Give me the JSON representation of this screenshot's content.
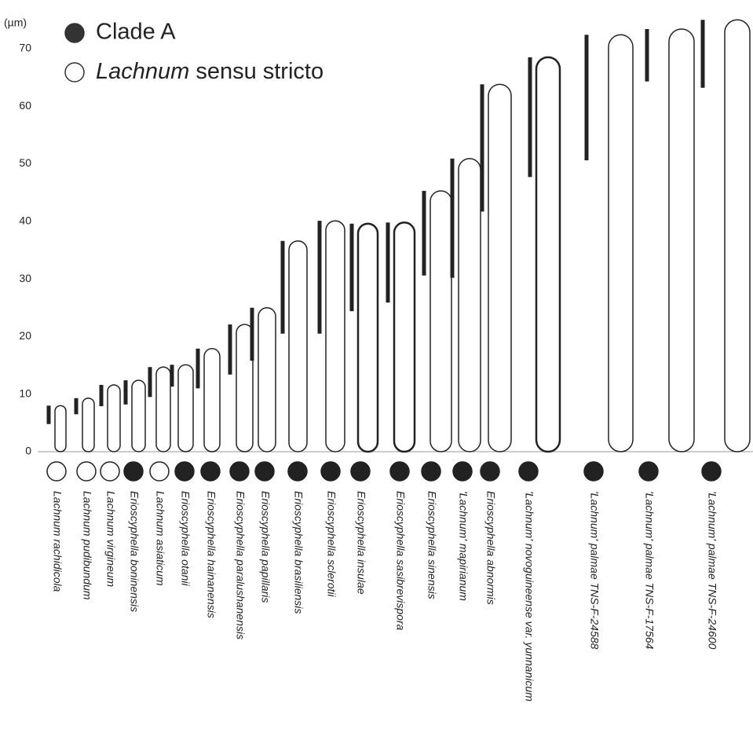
{
  "chart_data": {
    "type": "range",
    "unit_label": "(µm)",
    "groups": [
      {
        "name": "Clade A",
        "filled": true
      },
      {
        "name_parts": [
          "Lachnum",
          "sensu stricto"
        ],
        "filled": false
      }
    ],
    "categories": [
      "Lachnum rachidicola",
      "Lachnum pudibundum",
      "Lachnum virgineum",
      "Erioscyphella boninensis",
      "Lachnum asiaticum",
      "Erioscyphella otanii",
      "Erioscyphella hainanensis",
      "Erioscyphella paralushanensis",
      "Erioscyphella papillaris",
      "Erioscyphella brasiliensis",
      "Erioscyphella sclerotii",
      "Erioscyphella insulae",
      "Erioscyphella sasibrevispora",
      "Erioscyphella sinensis",
      "'Lachnum' mapirianum",
      "Erioscyphella abnormis",
      "'Lachnum' novoguineense var. yunnanicum",
      "'Lachnum' palmae TNS-F-24588",
      "'Lachnum' palmae TNS-F-17564",
      "'Lachnum' palmae TNS-F-24600"
    ],
    "group": [
      1,
      1,
      1,
      0,
      1,
      0,
      0,
      0,
      0,
      0,
      0,
      0,
      0,
      0,
      0,
      0,
      0,
      0,
      0,
      0
    ],
    "low": [
      4.8,
      6.5,
      7.9,
      8.2,
      9.5,
      11.3,
      11,
      13.4,
      15.8,
      20.5,
      20.5,
      24.4,
      25.9,
      30.6,
      30.2,
      41.7,
      47.7,
      50.6,
      64.3,
      63.2
    ],
    "high": [
      8,
      9.3,
      11.6,
      12.4,
      14.7,
      15.1,
      17.9,
      22.1,
      25,
      36.6,
      40.1,
      39.6,
      39.8,
      45.3,
      50.9,
      63.8,
      68.5,
      72.4,
      73.4,
      75
    ],
    "ylim": [
      0,
      76
    ],
    "yticks": [
      0,
      10,
      20,
      30,
      40,
      50,
      60,
      70
    ]
  }
}
